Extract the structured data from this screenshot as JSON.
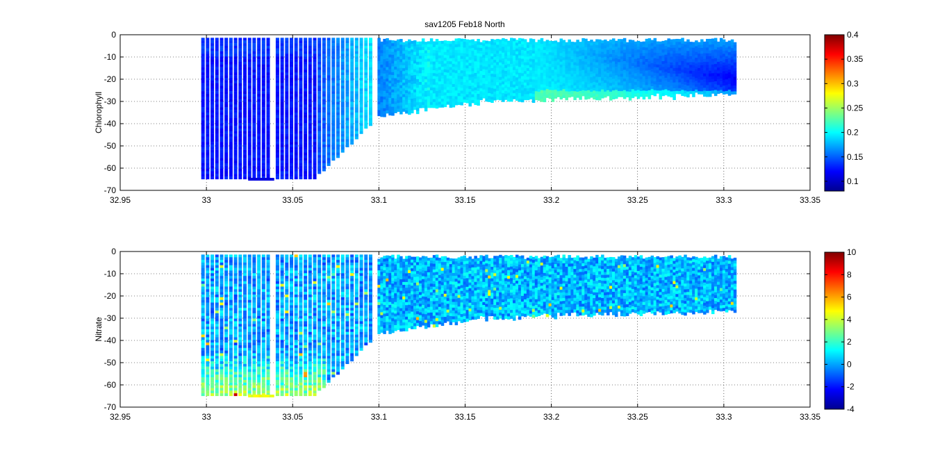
{
  "figure_title": "sav1205 Feb18 North",
  "chart_data": [
    {
      "type": "scatter",
      "title": "sav1205 Feb18 North",
      "xlabel": "",
      "ylabel": "Chlorophyll",
      "xlim": [
        32.95,
        33.35
      ],
      "ylim": [
        -70,
        0
      ],
      "x_ticks": [
        "32.95",
        "33",
        "33.05",
        "33.1",
        "33.15",
        "33.2",
        "33.25",
        "33.3",
        "33.35"
      ],
      "y_ticks": [
        "0",
        "-10",
        "-20",
        "-30",
        "-40",
        "-50",
        "-60",
        "-70"
      ],
      "grid": true,
      "colormap": "jet",
      "clim": [
        0.08,
        0.4
      ],
      "colorbar_ticks": [
        "0.4",
        "0.35",
        "0.3",
        "0.25",
        "0.2",
        "0.15",
        "0.1"
      ],
      "colors": {
        "low": "#00008f",
        "mid": "#00ffff",
        "high": "#800000"
      },
      "profiles": {
        "x_start": 32.998,
        "x_end": 33.307,
        "x_gap": [
          33.036,
          33.04
        ],
        "gap2": [
          33.098,
          33.1
        ],
        "depth_max_shallow": -65,
        "depth_min": -2,
        "typical_values": [
          {
            "x": 33.0,
            "value": 0.12
          },
          {
            "x": 33.05,
            "value": 0.13
          },
          {
            "x": 33.08,
            "value": 0.17
          },
          {
            "x": 33.12,
            "value": 0.16
          },
          {
            "x": 33.15,
            "value": 0.19
          },
          {
            "x": 33.2,
            "value": 0.17
          },
          {
            "x": 33.25,
            "value": 0.13
          },
          {
            "x": 33.3,
            "value": 0.13
          }
        ]
      }
    },
    {
      "type": "scatter",
      "title": "",
      "xlabel": "",
      "ylabel": "Nitrate",
      "xlim": [
        32.95,
        33.35
      ],
      "ylim": [
        -70,
        0
      ],
      "x_ticks": [
        "32.95",
        "33",
        "33.05",
        "33.1",
        "33.15",
        "33.2",
        "33.25",
        "33.3",
        "33.35"
      ],
      "y_ticks": [
        "0",
        "-10",
        "-20",
        "-30",
        "-40",
        "-50",
        "-60",
        "-70"
      ],
      "grid": true,
      "colormap": "jet",
      "clim": [
        -4,
        10
      ],
      "colorbar_ticks": [
        "10",
        "8",
        "6",
        "4",
        "2",
        "0",
        "-2",
        "-4"
      ],
      "colors": {
        "low": "#00008f",
        "mid": "#00ffff",
        "high": "#800000"
      },
      "profiles": {
        "x_start": 32.998,
        "x_end": 33.307,
        "typical_value": 0.5,
        "deep_value": 4
      }
    }
  ]
}
